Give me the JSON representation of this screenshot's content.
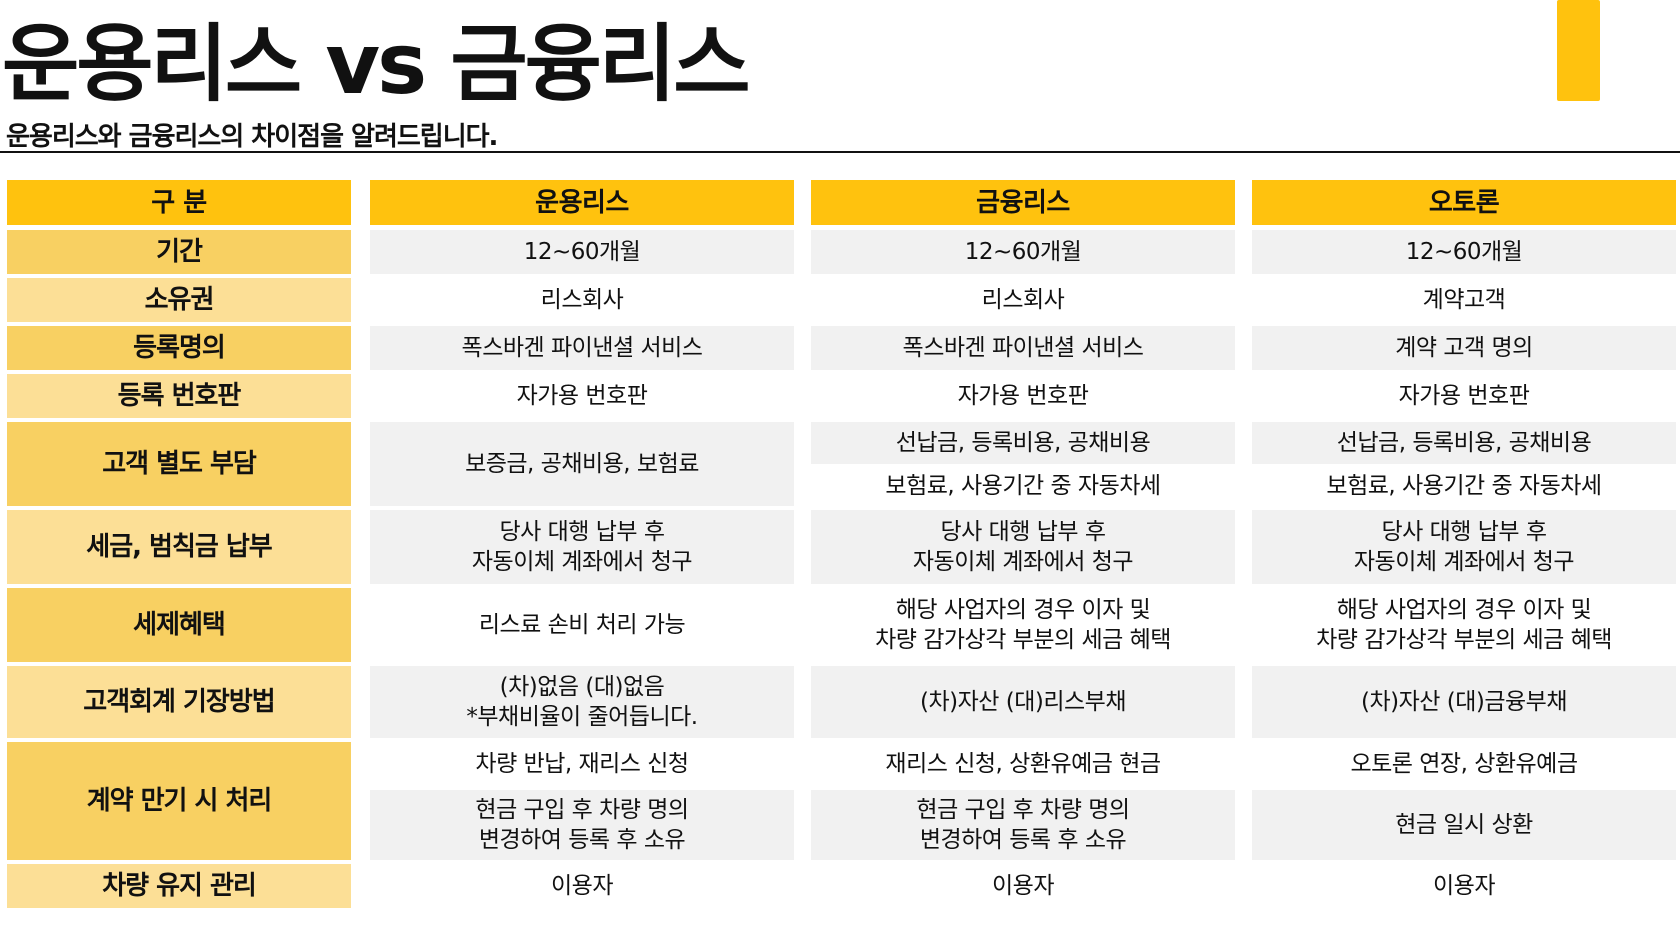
{
  "title": "운용리스 vs 금융리스",
  "subtitle": "운용리스와 금융리스의 차이점을 알려드립니다.",
  "headers": [
    "구 분",
    "운용리스",
    "금융리스",
    "오토론"
  ],
  "rows": [
    {
      "label": "기간",
      "c1": "12~60개월",
      "c2": "12~60개월",
      "c3": "12~60개월"
    },
    {
      "label": "소유권",
      "c1": "리스회사",
      "c2": "리스회사",
      "c3": "계약고객"
    },
    {
      "label": "등록명의",
      "c1": "폭스바겐 파이낸셜 서비스",
      "c2": "폭스바겐 파이낸셜 서비스",
      "c3": "계약 고객 명의"
    },
    {
      "label": "등록 번호판",
      "c1": "자가용 번호판",
      "c2": "자가용 번호판",
      "c3": "자가용 번호판"
    },
    {
      "label": "고객 별도 부담",
      "c1": "보증금, 공채비용, 보험료",
      "c2a": "선납금, 등록비용, 공채비용",
      "c2b": "보험료, 사용기간 중 자동차세",
      "c3a": "선납금, 등록비용, 공채비용",
      "c3b": "보험료, 사용기간 중 자동차세"
    },
    {
      "label": "세금, 범칙금 납부",
      "c1": "당사 대행 납부 후\n자동이체 계좌에서 청구",
      "c2": "당사 대행 납부 후\n자동이체 계좌에서 청구",
      "c3": "당사 대행 납부 후\n자동이체 계좌에서 청구"
    },
    {
      "label": "세제혜택",
      "c1": "리스료 손비 처리 가능",
      "c2": "해당 사업자의 경우 이자 및\n차량 감가상각 부분의 세금 혜택",
      "c3": "해당 사업자의 경우 이자 및\n차량 감가상각 부분의 세금 혜택"
    },
    {
      "label": "고객회계 기장방법",
      "c1": "(차)없음 (대)없음\n*부채비율이 줄어듭니다.",
      "c2": "(차)자산 (대)리스부채",
      "c3": "(차)자산 (대)금융부채"
    },
    {
      "label": "계약 만기 시 처리",
      "c1a": "차량 반납, 재리스 신청",
      "c1b": "현금 구입 후 차량 명의\n변경하여 등록 후 소유",
      "c2a": "재리스 신청, 상환유예금 현금",
      "c2b": "현금 구입 후 차량 명의\n변경하여 등록 후 소유",
      "c3a": "오토론 연장, 상환유예금",
      "c3b": "현금 일시 상환"
    },
    {
      "label": "차량 유지 관리",
      "c1": "이용자",
      "c2": "이용자",
      "c3": "이용자"
    }
  ]
}
